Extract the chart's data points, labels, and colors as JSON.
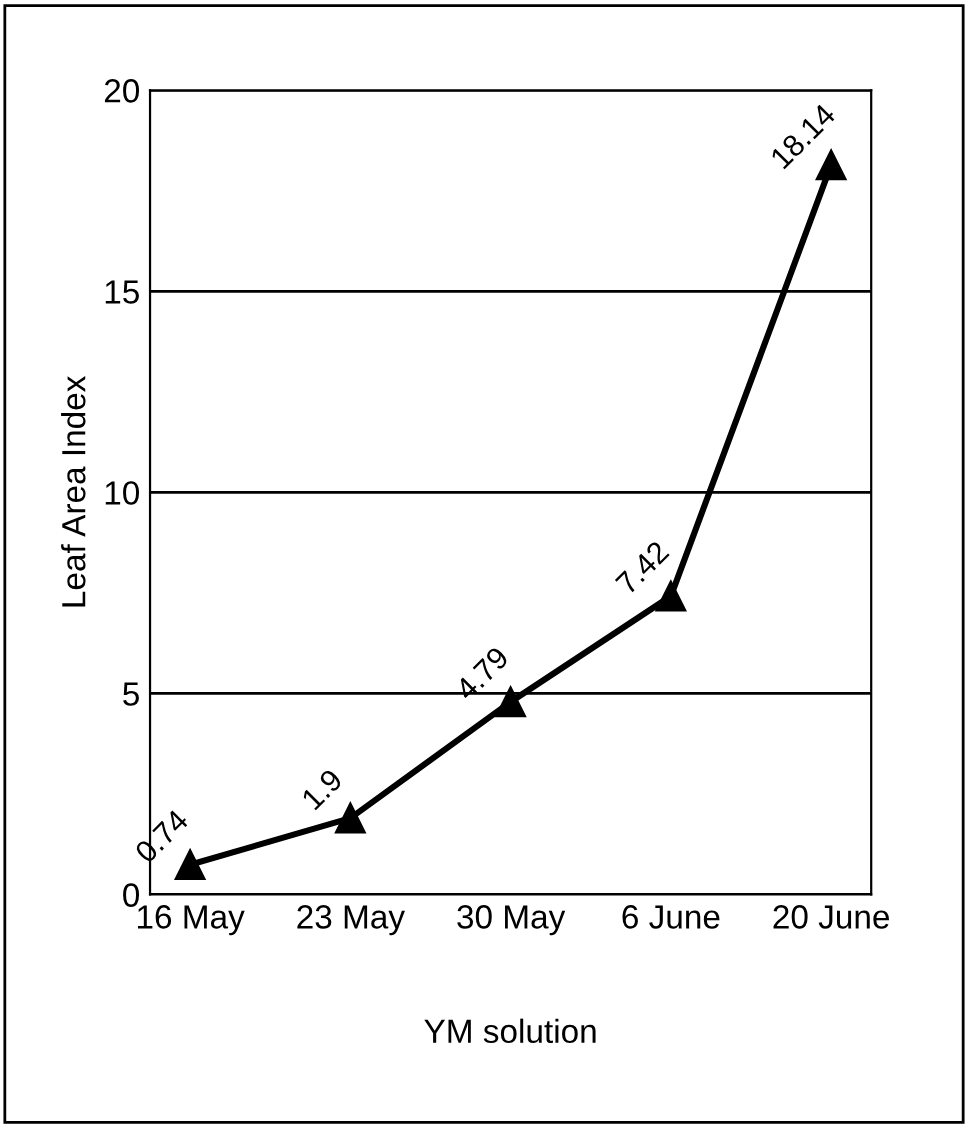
{
  "chart_data": {
    "type": "line",
    "xlabel": "YM solution",
    "ylabel": "Leaf Area Index",
    "categories": [
      "16 May",
      "23 May",
      "30 May",
      "6 June",
      "20 June"
    ],
    "series": [
      {
        "color": "#000000",
        "values": [
          0.74,
          1.9,
          4.79,
          7.42,
          18.14
        ]
      }
    ],
    "ylim": [
      0,
      20
    ],
    "yticks": [
      0,
      5,
      10,
      15,
      20
    ],
    "grid": "y",
    "marker": "triangle",
    "line_style": "solid",
    "data_labels": true,
    "legend": false
  }
}
